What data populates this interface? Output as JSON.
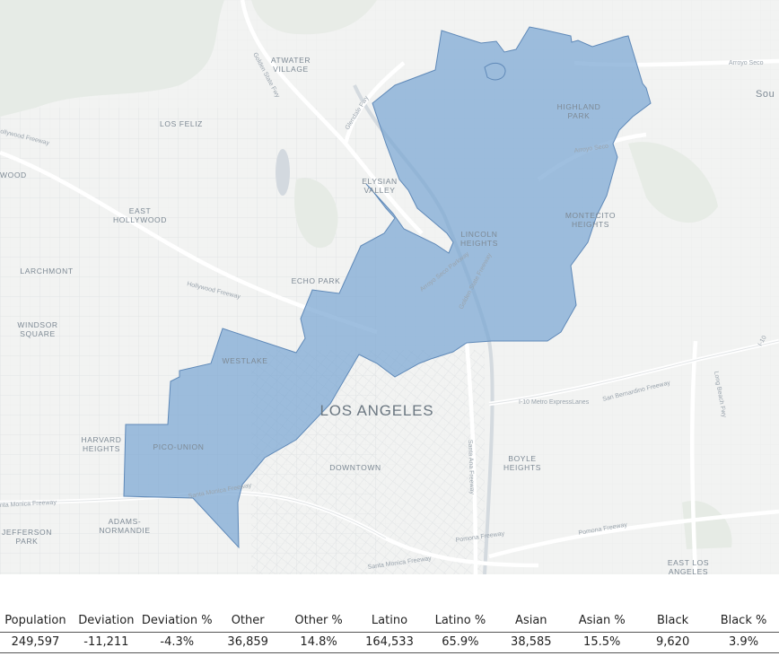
{
  "map": {
    "place_labels": {
      "atwater_village_l1": "ATWATER",
      "atwater_village_l2": "VILLAGE",
      "los_feliz": "LOS FELIZ",
      "east_hollywood_l1": "EAST",
      "east_hollywood_l2": "HOLLYWOOD",
      "larchmont": "LARCHMONT",
      "windsor_square_l1": "WINDSOR",
      "windsor_square_l2": "SQUARE",
      "elysian_valley_l1": "ELYSIAN",
      "elysian_valley_l2": "VALLEY",
      "echo_park": "ECHO PARK",
      "highland_park_l1": "HIGHLAND",
      "highland_park_l2": "PARK",
      "lincoln_heights_l1": "LINCOLN",
      "lincoln_heights_l2": "HEIGHTS",
      "montecito_heights_l1": "MONTECITO",
      "montecito_heights_l2": "HEIGHTS",
      "westlake": "WESTLAKE",
      "los_angeles": "LOS ANGELES",
      "harvard_heights_l1": "HARVARD",
      "harvard_heights_l2": "HEIGHTS",
      "pico_union": "PICO-UNION",
      "downtown": "DOWNTOWN",
      "boyle_heights_l1": "BOYLE",
      "boyle_heights_l2": "HEIGHTS",
      "adams_normandie_l1": "ADAMS-",
      "adams_normandie_l2": "NORMANDIE",
      "jefferson_park_l1": "JEFFERSON",
      "jefferson_park_l2": "PARK",
      "east_los_angeles_l1": "EAST LOS",
      "east_los_angeles_l2": "ANGELES",
      "south_partial": "Sou",
      "wood_partial": "WOOD"
    },
    "road_labels": {
      "arroyo_seco_top": "Arroyo Seco",
      "golden_state": "Golden State Fwy",
      "glendale_fwy": "Glendale Fwy",
      "hollywood_fwy_left": "ollywood Freeway",
      "hollywood_fwy": "Hollywood Freeway",
      "arroyo_seco_pkwy": "Arroyo Seco Parkway",
      "golden_state_freeway": "Golden State Freeway",
      "arroyo_seco_mid": "Arroyo Seco",
      "i10_express": "I-10 Metro ExpressLanes",
      "san_bernardino": "San Bernardino Freeway",
      "santa_ana": "Santa Ana Freeway",
      "santa_monica_fwy_left": "nta Monica Freeway",
      "santa_monica_fwy_mid": "Santa Monica Freeway",
      "santa_monica_fwy_bottom": "Santa Monica Freeway",
      "pomona_fwy": "Pomona Freeway",
      "pomona_fwy_right": "Pomona Freeway",
      "i10_right": "I-10",
      "long_beach": "Long Beach Fwy"
    },
    "district_color": "#7aa6d2"
  },
  "stats": {
    "headers": [
      "Population",
      "Deviation",
      "Deviation %",
      "Other",
      "Other %",
      "Latino",
      "Latino %",
      "Asian",
      "Asian %",
      "Black",
      "Black %"
    ],
    "values": [
      "249,597",
      "-11,211",
      "-4.3%",
      "36,859",
      "14.8%",
      "164,533",
      "65.9%",
      "38,585",
      "15.5%",
      "9,620",
      "3.9%"
    ]
  }
}
